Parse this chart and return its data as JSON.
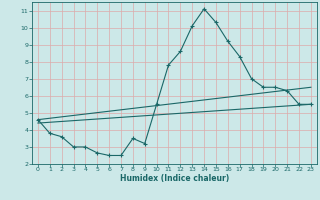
{
  "xlabel": "Humidex (Indice chaleur)",
  "background_color": "#cce8e8",
  "grid_color": "#ddaaaa",
  "line_color": "#1a6868",
  "xlim": [
    -0.5,
    23.5
  ],
  "ylim": [
    2,
    11.5
  ],
  "xticks": [
    0,
    1,
    2,
    3,
    4,
    5,
    6,
    7,
    8,
    9,
    10,
    11,
    12,
    13,
    14,
    15,
    16,
    17,
    18,
    19,
    20,
    21,
    22,
    23
  ],
  "yticks": [
    2,
    3,
    4,
    5,
    6,
    7,
    8,
    9,
    10,
    11
  ],
  "line1_x": [
    0,
    1,
    2,
    3,
    4,
    5,
    6,
    7,
    8,
    9,
    10,
    11,
    12,
    13,
    14,
    15,
    16,
    17,
    18,
    19,
    20,
    21,
    22,
    23
  ],
  "line1_y": [
    4.6,
    3.8,
    3.6,
    3.0,
    3.0,
    2.65,
    2.5,
    2.5,
    3.5,
    3.2,
    5.5,
    7.8,
    8.6,
    10.1,
    11.1,
    10.3,
    9.2,
    8.3,
    7.0,
    6.5,
    6.5,
    6.3,
    5.5,
    5.5
  ],
  "line2_x": [
    0,
    23
  ],
  "line2_y": [
    4.4,
    5.5
  ],
  "line3_x": [
    0,
    23
  ],
  "line3_y": [
    4.6,
    6.5
  ]
}
